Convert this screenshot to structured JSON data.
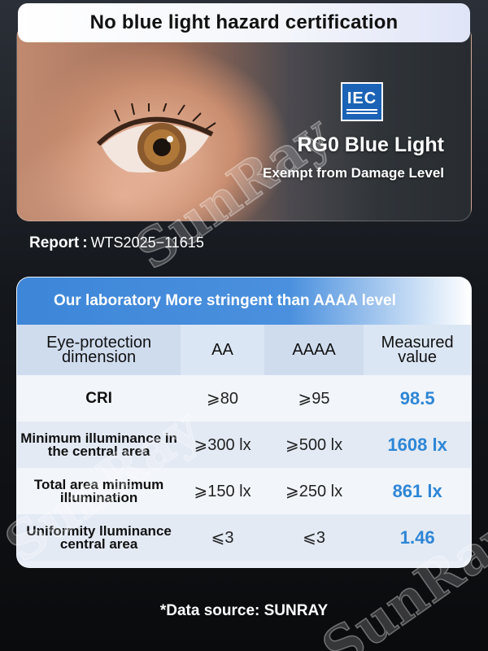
{
  "header": {
    "title": "No blue light hazard certification"
  },
  "hero": {
    "logo_text": "IEC",
    "headline": "RG0 Blue Light",
    "subline": "Exempt from Damage Level"
  },
  "report": {
    "label": "Report",
    "separator": ":",
    "number": "WTS2025−11615"
  },
  "table": {
    "banner": "Our laboratory More stringent than AAAA level",
    "headers": [
      "Eye-protection dimension",
      "AA",
      "AAAA",
      "Measured value"
    ],
    "rows": [
      {
        "dimension": "CRI",
        "aa": "⩾80",
        "aaaa": "⩾95",
        "measured": "98.5"
      },
      {
        "dimension": "Minimum illuminance in the central area",
        "aa": "⩾300 lx",
        "aaaa": "⩾500 lx",
        "measured": "1608 lx"
      },
      {
        "dimension": "Total area minimum illumination",
        "aa": "⩾150 lx",
        "aaaa": "⩾250 lx",
        "measured": "861 lx"
      },
      {
        "dimension": "Uniformity lluminance central area",
        "aa": "⩽3",
        "aaaa": "⩽3",
        "measured": "1.46"
      }
    ]
  },
  "footer": {
    "source": "*Data source: SUNRAY"
  },
  "watermark": "SunRay",
  "colors": {
    "accent_blue": "#2e86d6",
    "banner_blue": "#3d86d8",
    "iec_blue": "#1b63b6"
  }
}
